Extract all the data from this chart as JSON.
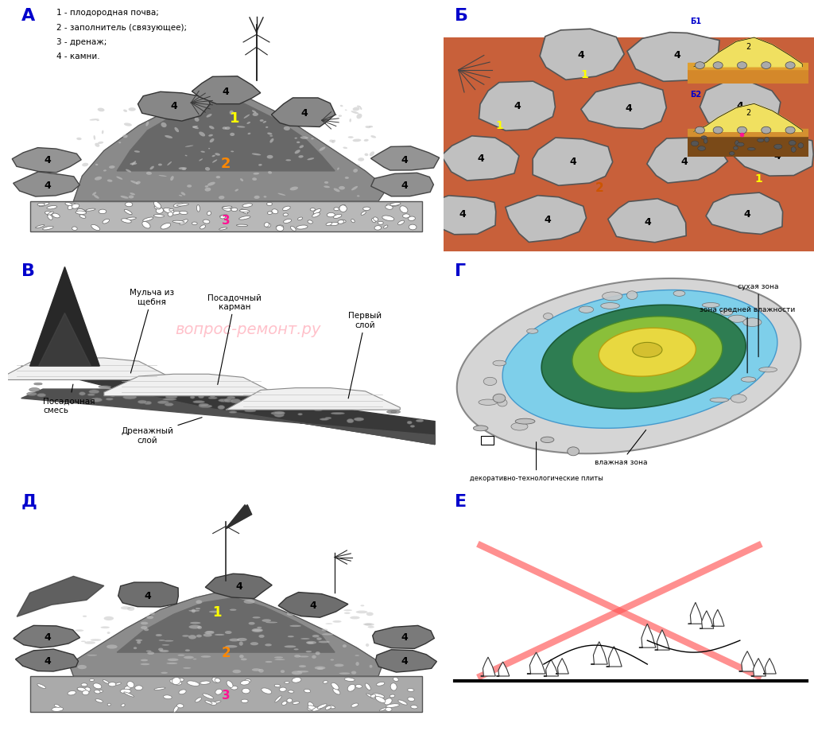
{
  "bg_color": "#ffffff",
  "panel_label_color": "#0000cc",
  "legend_A": [
    "1 - плодородная почва;",
    "2 - заполнитель (связующее);",
    "3 - дренаж;",
    "4 - камни."
  ],
  "watermark": "вопрос-ремонт.ру",
  "watermark_color": "#ffb6c1",
  "G_labels": {
    "dry": "сухая зона",
    "medium": "зона средней влажности",
    "wet": "влажная зона",
    "plates": "декоративно-технологические плиты"
  },
  "G_colors": {
    "outer_stone": "#d8d8d8",
    "blue": "#7ecfea",
    "dark_green": "#2e7d52",
    "yellow_green": "#8abf3a",
    "yellow": "#e8d840",
    "inner": "#d4c030"
  },
  "E_cross_color": "#ff5555",
  "num_colors": {
    "1": "#ffff00",
    "2": "#ff8800",
    "3": "#ff1493",
    "4_A": "#000000",
    "4_D": "#000000"
  }
}
